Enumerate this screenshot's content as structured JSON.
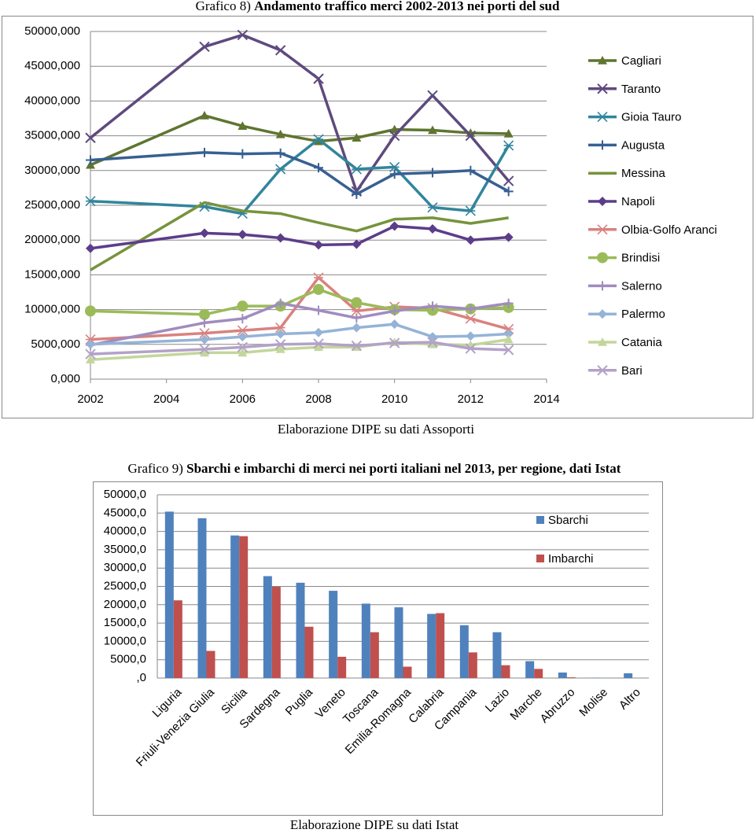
{
  "chart_data": [
    {
      "type": "line",
      "label": "Grafico 8)",
      "title": "Andamento traffico merci 2002-2013 nei porti del sud",
      "source": "Elaborazione DIPE su dati Assoporti",
      "x": [
        2002,
        2005,
        2006,
        2007,
        2008,
        2009,
        2010,
        2011,
        2012,
        2013
      ],
      "xlim": [
        2002,
        2014
      ],
      "xticks": [
        2002,
        2004,
        2006,
        2008,
        2010,
        2012,
        2014
      ],
      "ylim": [
        0,
        50000
      ],
      "yticks": [
        {
          "value": 0,
          "label": "0,000"
        },
        {
          "value": 5000,
          "label": "5000,000"
        },
        {
          "value": 10000,
          "label": "10000,000"
        },
        {
          "value": 15000,
          "label": "15000,000"
        },
        {
          "value": 20000,
          "label": "20000,000"
        },
        {
          "value": 25000,
          "label": "25000,000"
        },
        {
          "value": 30000,
          "label": "30000,000"
        },
        {
          "value": 35000,
          "label": "35000,000"
        },
        {
          "value": 40000,
          "label": "40000,000"
        },
        {
          "value": 45000,
          "label": "45000,000"
        },
        {
          "value": 50000,
          "label": "50000,000"
        }
      ],
      "grid": true,
      "legend": "right",
      "series": [
        {
          "name": "Cagliari",
          "color": "#5f7530",
          "marker": "triangle",
          "values": [
            30800,
            37900,
            36400,
            35200,
            34200,
            34700,
            35900,
            35800,
            35400,
            35300
          ]
        },
        {
          "name": "Taranto",
          "color": "#5e4a7e",
          "marker": "x",
          "values": [
            34700,
            47800,
            49500,
            47300,
            43200,
            27000,
            35000,
            40800,
            35000,
            28500
          ]
        },
        {
          "name": "Gioia Tauro",
          "color": "#31859c",
          "marker": "asterisk",
          "values": [
            25600,
            24800,
            23800,
            30200,
            34500,
            30200,
            30500,
            24700,
            24200,
            33600
          ]
        },
        {
          "name": "Augusta",
          "color": "#376092",
          "marker": "plus",
          "values": [
            31500,
            32600,
            32400,
            32500,
            30400,
            26600,
            29500,
            29700,
            30000,
            27000
          ]
        },
        {
          "name": "Messina",
          "color": "#77933c",
          "marker": "none",
          "values": [
            15700,
            25400,
            24200,
            23800,
            22500,
            21300,
            23000,
            23200,
            22400,
            23200
          ]
        },
        {
          "name": "Napoli",
          "color": "#5c3d8a",
          "marker": "diamond",
          "values": [
            18800,
            21000,
            20800,
            20300,
            19300,
            19400,
            22000,
            21600,
            20000,
            20400
          ]
        },
        {
          "name": "Olbia-Golfo Aranci",
          "color": "#d9827f",
          "marker": "asterisk",
          "values": [
            5700,
            6600,
            7000,
            7400,
            14600,
            9800,
            10400,
            10200,
            8700,
            7200
          ]
        },
        {
          "name": "Brindisi",
          "color": "#9bbb59",
          "marker": "circle",
          "values": [
            9800,
            9300,
            10500,
            10500,
            12900,
            11000,
            10000,
            9900,
            10100,
            10300
          ]
        },
        {
          "name": "Salerno",
          "color": "#a08cbf",
          "marker": "plus",
          "values": [
            4900,
            8100,
            8700,
            10900,
            9900,
            8800,
            9800,
            10500,
            10100,
            10900
          ]
        },
        {
          "name": "Palermo",
          "color": "#95b3d7",
          "marker": "diamond",
          "values": [
            5000,
            5700,
            6100,
            6500,
            6700,
            7400,
            7900,
            6100,
            6200,
            6500
          ]
        },
        {
          "name": "Catania",
          "color": "#c3d69b",
          "marker": "triangle",
          "values": [
            2800,
            3800,
            3800,
            4300,
            4600,
            4600,
            5300,
            5000,
            4900,
            5700
          ]
        },
        {
          "name": "Bari",
          "color": "#b3a2c7",
          "marker": "x",
          "values": [
            3600,
            4300,
            4600,
            5000,
            5100,
            4800,
            5200,
            5300,
            4400,
            4200
          ]
        }
      ]
    },
    {
      "type": "bar",
      "label": "Grafico 9)",
      "title": "Sbarchi e imbarchi di merci nei porti italiani nel 2013, per regione, dati Istat",
      "source": "Elaborazione DIPE su dati Istat",
      "categories": [
        "Liguria",
        "Friuli-Venezia Giulia",
        "Sicilia",
        "Sardegna",
        "Puglia",
        "Veneto",
        "Toscana",
        "Emilia-Romagna",
        "Calabria",
        "Campania",
        "Lazio",
        "Marche",
        "Abruzzo",
        "Molise",
        "Altro"
      ],
      "ylim": [
        0,
        50000
      ],
      "yticks": [
        {
          "value": 0,
          "label": ",0"
        },
        {
          "value": 5000,
          "label": "5000,0"
        },
        {
          "value": 10000,
          "label": "10000,0"
        },
        {
          "value": 15000,
          "label": "15000,0"
        },
        {
          "value": 20000,
          "label": "20000,0"
        },
        {
          "value": 25000,
          "label": "25000,0"
        },
        {
          "value": 30000,
          "label": "30000,0"
        },
        {
          "value": 35000,
          "label": "35000,0"
        },
        {
          "value": 40000,
          "label": "40000,0"
        },
        {
          "value": 45000,
          "label": "45000,0"
        },
        {
          "value": 50000,
          "label": "50000,0"
        }
      ],
      "grid": true,
      "legend": "right",
      "series": [
        {
          "name": "Sbarchi",
          "color": "#4f81bd",
          "values": [
            45400,
            43600,
            38900,
            27800,
            26000,
            23800,
            20300,
            19300,
            17500,
            14400,
            12500,
            4600,
            1500,
            100,
            1300
          ]
        },
        {
          "name": "Imbarchi",
          "color": "#c0504d",
          "values": [
            21200,
            7400,
            38700,
            24900,
            14000,
            5800,
            12500,
            3100,
            17700,
            7000,
            3500,
            2500,
            200,
            0,
            0
          ]
        }
      ]
    }
  ]
}
